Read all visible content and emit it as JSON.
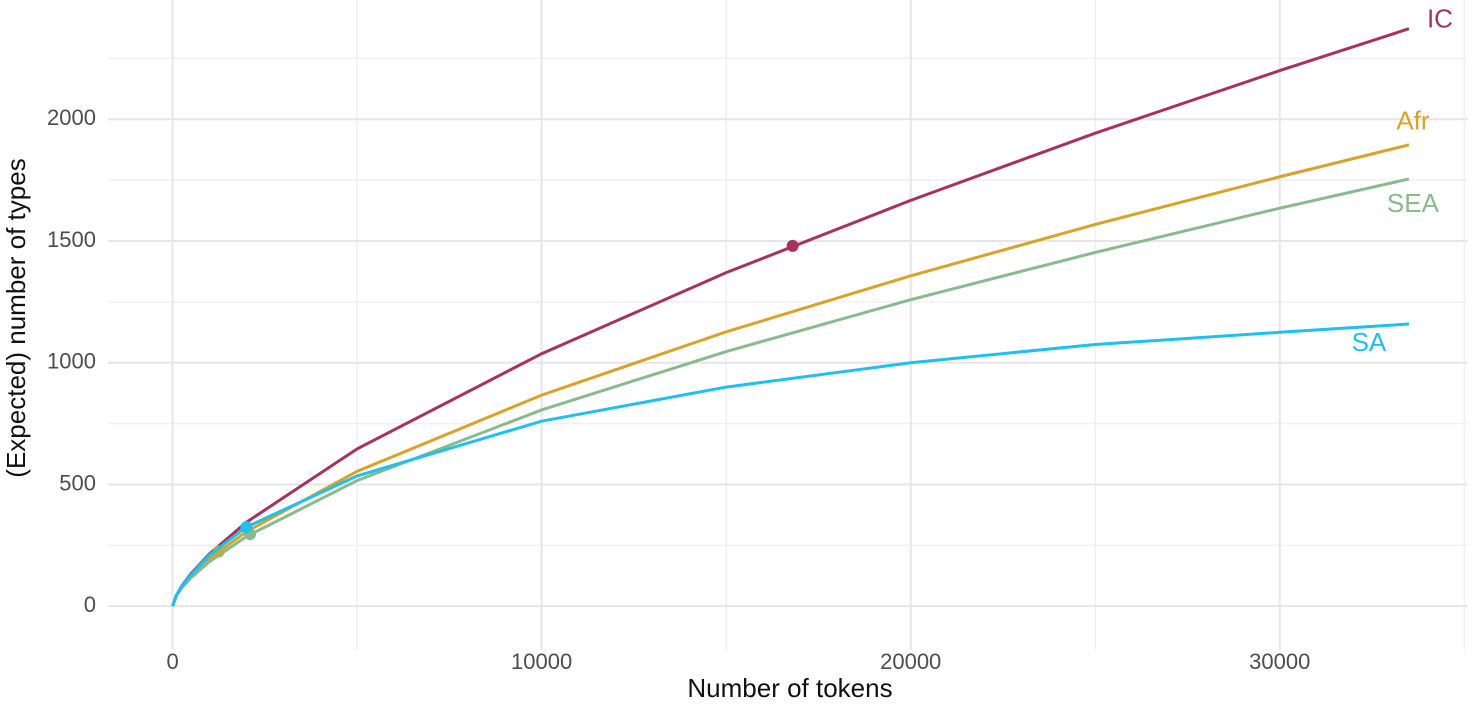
{
  "chart_data": {
    "type": "line",
    "xlabel": "Number of tokens",
    "ylabel": "(Expected) number of types",
    "x": [
      0,
      100,
      250,
      500,
      1000,
      2000,
      5000,
      10000,
      15000,
      20000,
      25000,
      30000,
      33500
    ],
    "series": [
      {
        "name": "IC",
        "color": "#a8325e",
        "values": [
          0,
          44,
          83,
          134,
          215,
          345,
          646,
          1037,
          1370,
          1667,
          1943,
          2200,
          2372
        ],
        "marker_x": 16800,
        "marker_y": 1480
      },
      {
        "name": "Afr",
        "color": "#d9a32a",
        "values": [
          0,
          44,
          80,
          125,
          195,
          306,
          554,
          867,
          1127,
          1357,
          1568,
          1764,
          1895
        ],
        "marker_x": 1250,
        "marker_y": 225
      },
      {
        "name": "SEA",
        "color": "#88bb8c",
        "values": [
          0,
          42,
          75,
          117,
          183,
          286,
          516,
          806,
          1046,
          1259,
          1453,
          1635,
          1755
        ],
        "marker_x": 2100,
        "marker_y": 296
      },
      {
        "name": "SA",
        "color": "#1ec0ef",
        "values": [
          0,
          45,
          80,
          130,
          210,
          325,
          535,
          760,
          900,
          1000,
          1075,
          1125,
          1159
        ],
        "marker_x": 2000,
        "marker_y": 325
      }
    ],
    "xlim": [
      -1750,
      35100
    ],
    "ylim": [
      -180,
      2490
    ],
    "xticks": [
      0,
      10000,
      20000,
      30000
    ],
    "yticks": [
      0,
      500,
      1000,
      1500,
      2000
    ],
    "grid": true
  }
}
